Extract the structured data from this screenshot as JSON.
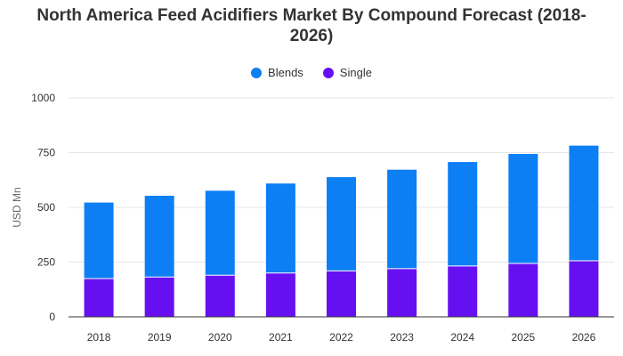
{
  "chart_data": {
    "type": "bar",
    "stacked": true,
    "title_line1": "North America Feed Acidifiers Market By Compound Forecast (2018-",
    "title_line2": "2026)",
    "ylabel": "USD Mn",
    "xlabel": "",
    "ylim": [
      0,
      1000
    ],
    "yticks": [
      "0",
      "250",
      "500",
      "750",
      "1000"
    ],
    "categories": [
      "2018",
      "2019",
      "2020",
      "2021",
      "2022",
      "2023",
      "2024",
      "2025",
      "2026"
    ],
    "series": [
      {
        "name": "Single",
        "color": "#6610f2",
        "values": [
          175,
          182,
          190,
          200,
          210,
          220,
          232,
          244,
          256
        ]
      },
      {
        "name": "Blends",
        "color": "#0d7ff5",
        "values": [
          347,
          371,
          386,
          409,
          428,
          452,
          475,
          500,
          526
        ]
      }
    ],
    "legend": [
      {
        "name": "Blends",
        "color": "#0d7ff5"
      },
      {
        "name": "Single",
        "color": "#6610f2"
      }
    ],
    "legend_position": "top-center",
    "grid": true
  }
}
